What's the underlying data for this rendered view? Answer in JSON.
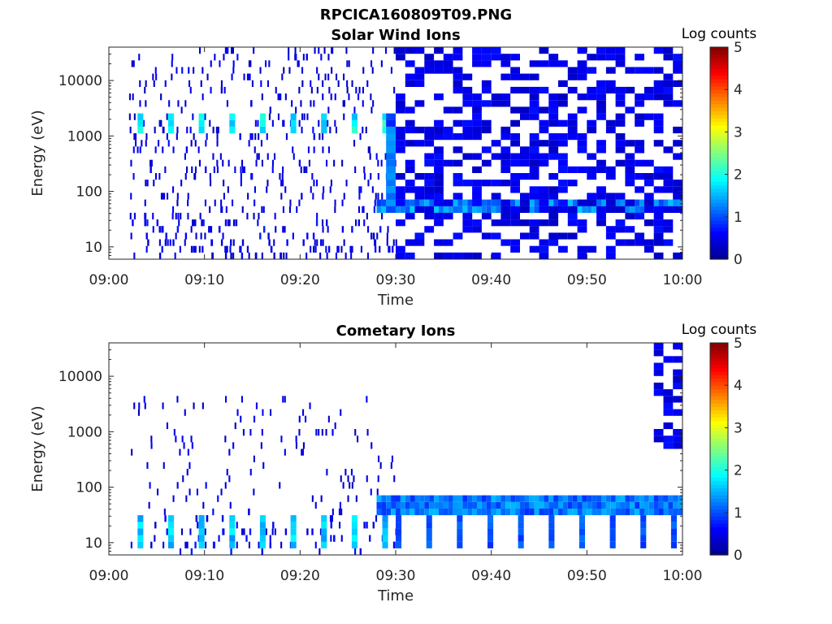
{
  "figure_title": "RPCICA160809T09.PNG",
  "colormap": [
    "#00008f",
    "#0000ff",
    "#0080ff",
    "#00ffff",
    "#80ff80",
    "#ffff00",
    "#ff8000",
    "#ff0000",
    "#800000"
  ],
  "chart_data": [
    {
      "type": "heatmap",
      "title": "Solar Wind Ions",
      "xlabel": "Time",
      "ylabel": "Energy (eV)",
      "x_ticks": [
        "09:00",
        "09:10",
        "09:20",
        "09:30",
        "09:40",
        "09:50",
        "10:00"
      ],
      "y_ticks": [
        "10",
        "100",
        "1000",
        "10000"
      ],
      "y_scale": "log",
      "ylim": [
        6,
        40000
      ],
      "xlim": [
        "09:00",
        "10:00"
      ],
      "colorbar": {
        "label": "Log counts",
        "ticks": [
          "0",
          "1",
          "2",
          "3",
          "4",
          "5"
        ],
        "range": [
          0,
          5
        ]
      },
      "features": [
        {
          "time_range": [
            "09:03",
            "09:29"
          ],
          "energy_eV": 1600,
          "log_counts": 2.2,
          "note": "periodic bursts every ~3 min"
        },
        {
          "time_range": [
            "09:28",
            "10:00"
          ],
          "energy_eV": 55,
          "log_counts": 1.5,
          "note": "continuous band"
        },
        {
          "time_range": [
            "09:29",
            "09:30"
          ],
          "energy_eV": [
            50,
            2500
          ],
          "log_counts": 1.3,
          "note": "vertical spike"
        },
        {
          "time_range": [
            "09:30",
            "10:00"
          ],
          "energy_eV": [
            6,
            40000
          ],
          "log_counts": 0.3,
          "note": "broad low-level coverage"
        }
      ]
    },
    {
      "type": "heatmap",
      "title": "Cometary Ions",
      "xlabel": "Time",
      "ylabel": "Energy (eV)",
      "x_ticks": [
        "09:00",
        "09:10",
        "09:20",
        "09:30",
        "09:40",
        "09:50",
        "10:00"
      ],
      "y_ticks": [
        "10",
        "100",
        "1000",
        "10000"
      ],
      "y_scale": "log",
      "ylim": [
        6,
        40000
      ],
      "xlim": [
        "09:00",
        "10:00"
      ],
      "colorbar": {
        "label": "Log counts",
        "ticks": [
          "0",
          "1",
          "2",
          "3",
          "4",
          "5"
        ],
        "range": [
          0,
          5
        ]
      },
      "features": [
        {
          "time_range": [
            "09:03",
            "09:30"
          ],
          "energy_eV": [
            8,
            25
          ],
          "log_counts": 1.9,
          "note": "periodic bursts every ~3 min"
        },
        {
          "time_range": [
            "09:28",
            "10:00"
          ],
          "energy_eV": 50,
          "log_counts": 1.4,
          "note": "continuous band"
        },
        {
          "time_range": [
            "09:30",
            "10:00"
          ],
          "energy_eV": [
            8,
            25
          ],
          "log_counts": 1.2,
          "note": "periodic low-energy blocks"
        },
        {
          "time_range": [
            "09:57",
            "10:00"
          ],
          "energy_eV": [
            500,
            40000
          ],
          "log_counts": 0.3,
          "note": "high-energy column"
        }
      ]
    }
  ]
}
